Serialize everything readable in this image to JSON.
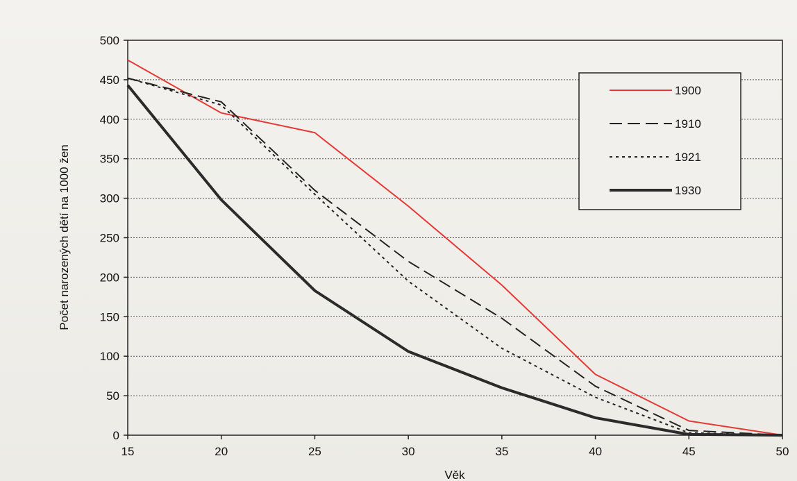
{
  "chart_data": {
    "type": "line",
    "xlabel": "Věk",
    "ylabel": "Počet narozených dětí na 1000 žen",
    "xlim": [
      15,
      50
    ],
    "ylim": [
      0,
      500
    ],
    "x_ticks": [
      15,
      20,
      25,
      30,
      35,
      40,
      45,
      50
    ],
    "y_ticks": [
      0,
      50,
      100,
      150,
      200,
      250,
      300,
      350,
      400,
      450,
      500
    ],
    "grid": "horizontal",
    "legend": "top-right",
    "x": [
      15,
      20,
      25,
      30,
      35,
      40,
      45,
      50
    ],
    "series": [
      {
        "name": "1900",
        "values": [
          475,
          408,
          383,
          290,
          190,
          77,
          18,
          0
        ],
        "color": "#e53935",
        "style": "solid"
      },
      {
        "name": "1910",
        "values": [
          452,
          422,
          310,
          220,
          148,
          62,
          6,
          0
        ],
        "color": "#222222",
        "style": "dashed"
      },
      {
        "name": "1921",
        "values": [
          452,
          418,
          305,
          195,
          110,
          48,
          3,
          0
        ],
        "color": "#222222",
        "style": "dotted"
      },
      {
        "name": "1930",
        "values": [
          443,
          298,
          183,
          106,
          60,
          22,
          1,
          0
        ],
        "color": "#2b2b2b",
        "style": "thick"
      }
    ]
  }
}
